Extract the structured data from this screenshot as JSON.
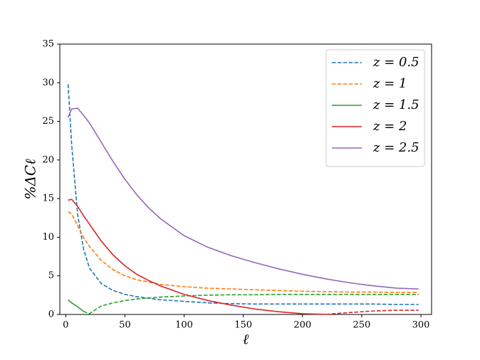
{
  "chart_data": {
    "type": "line",
    "x_label": "ℓ",
    "y_label": "%ΔCℓ",
    "x": [
      2,
      5,
      10,
      15,
      20,
      30,
      40,
      50,
      60,
      70,
      80,
      100,
      120,
      140,
      160,
      180,
      200,
      220,
      240,
      260,
      280,
      298
    ],
    "series": [
      {
        "name": "z = 0.5",
        "color": "#1f77b4",
        "legend_style": "dashed",
        "values": [
          29.8,
          22,
          13,
          8.5,
          6,
          4,
          3.1,
          2.6,
          2.3,
          2.1,
          1.9,
          1.7,
          1.5,
          1.4,
          1.35,
          1.35,
          1.35,
          1.35,
          1.35,
          1.35,
          1.3,
          1.3
        ],
        "styles": [
          "dashed",
          "dashed",
          "dashed",
          "dashed",
          "dashed",
          "dashed",
          "dashed",
          "dashed",
          "dashed",
          "dashed",
          "dashed",
          "dashed",
          "dashed",
          "dashed",
          "dashed",
          "dashed",
          "dashed",
          "dashed",
          "dashed",
          "dashed",
          "dashed",
          "dashed"
        ]
      },
      {
        "name": "z = 1",
        "color": "#ff7f0e",
        "legend_style": "dashed",
        "values": [
          13.3,
          13,
          11.5,
          10,
          8.8,
          7,
          5.8,
          5,
          4.5,
          4.2,
          3.9,
          3.6,
          3.4,
          3.3,
          3.2,
          3.1,
          3.0,
          2.95,
          2.9,
          2.9,
          2.85,
          2.85
        ],
        "styles": [
          "dashed",
          "dashed",
          "dashed",
          "dashed",
          "dashed",
          "dashed",
          "dashed",
          "dashed",
          "dashed",
          "dashed",
          "dashed",
          "dashed",
          "dashed",
          "dashed",
          "dashed",
          "dashed",
          "dashed",
          "dashed",
          "dashed",
          "dashed",
          "dashed",
          "dashed"
        ]
      },
      {
        "name": "z = 1.5",
        "color": "#2ca02c",
        "legend_style": "solid",
        "values": [
          1.9,
          1.5,
          1.0,
          0.4,
          0.1,
          1.1,
          1.5,
          1.8,
          2.0,
          2.15,
          2.25,
          2.4,
          2.5,
          2.55,
          2.55,
          2.6,
          2.6,
          2.6,
          2.6,
          2.6,
          2.6,
          2.6
        ],
        "styles": [
          "solid",
          "solid",
          "solid",
          "solid",
          "dashed",
          "dashed",
          "dashed",
          "dashed",
          "dashed",
          "dashed",
          "dashed",
          "dashed",
          "dashed",
          "dashed",
          "dashed",
          "dashed",
          "dashed",
          "dashed",
          "dashed",
          "dashed",
          "dashed",
          "dashed"
        ]
      },
      {
        "name": "z = 2",
        "color": "#d62728",
        "legend_style": "solid",
        "values": [
          14.8,
          14.9,
          14,
          12.8,
          11.7,
          9.5,
          7.7,
          6.3,
          5.2,
          4.4,
          3.7,
          2.6,
          1.8,
          1.2,
          0.7,
          0.35,
          0.1,
          0.02,
          0.25,
          0.45,
          0.55,
          0.55
        ],
        "styles": [
          "solid",
          "solid",
          "solid",
          "solid",
          "solid",
          "solid",
          "solid",
          "solid",
          "solid",
          "solid",
          "solid",
          "solid",
          "solid",
          "solid",
          "solid",
          "solid",
          "solid",
          "solid",
          "dashed",
          "dashed",
          "dashed",
          "dashed"
        ]
      },
      {
        "name": "z = 2.5",
        "color": "#9467bd",
        "legend_style": "solid",
        "values": [
          25.5,
          26.6,
          26.7,
          25.8,
          24.8,
          22.3,
          19.8,
          17.5,
          15.5,
          13.8,
          12.4,
          10.2,
          8.7,
          7.6,
          6.7,
          5.9,
          5.2,
          4.6,
          4.1,
          3.7,
          3.4,
          3.3
        ],
        "styles": [
          "solid",
          "solid",
          "solid",
          "solid",
          "solid",
          "solid",
          "solid",
          "solid",
          "solid",
          "solid",
          "solid",
          "solid",
          "solid",
          "solid",
          "solid",
          "solid",
          "solid",
          "solid",
          "solid",
          "solid",
          "solid",
          "solid"
        ]
      }
    ],
    "xlim": [
      -5,
      309
    ],
    "xticks": [
      0,
      50,
      100,
      150,
      200,
      250,
      300
    ],
    "ylim": [
      0,
      35
    ],
    "yticks": [
      0,
      5,
      10,
      15,
      20,
      25,
      30,
      35
    ],
    "legend": "upper right"
  }
}
